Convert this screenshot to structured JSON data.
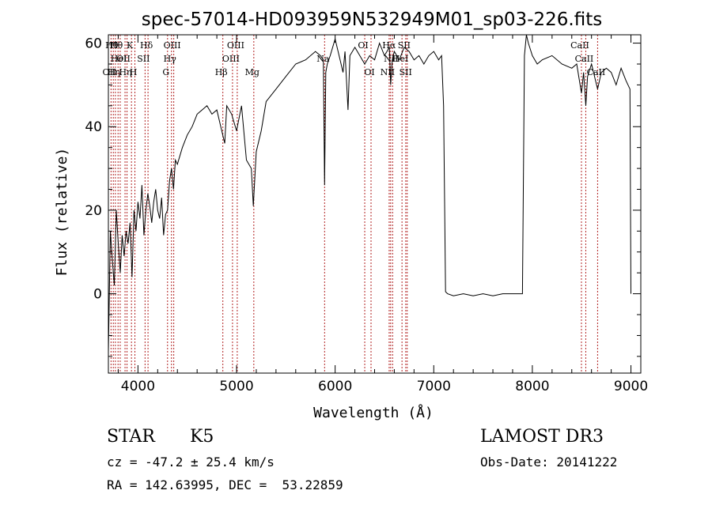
{
  "chart_data": {
    "type": "line",
    "title": "spec-57014-HD093959N532949M01_sp03-226.fits",
    "xlabel": "Wavelength (Å)",
    "ylabel": "Flux (relative)",
    "xlim": [
      3700,
      9100
    ],
    "ylim": [
      -19,
      62
    ],
    "x_ticks": [
      4000,
      5000,
      6000,
      7000,
      8000,
      9000
    ],
    "y_ticks": [
      0,
      20,
      40,
      60
    ],
    "grid": false,
    "line_color": "#000000",
    "marker_color": "#b22222",
    "series": [
      {
        "x": [
          3700,
          3720,
          3740,
          3760,
          3780,
          3800,
          3820,
          3840,
          3860,
          3880,
          3900,
          3920,
          3940,
          3960,
          3980,
          4000,
          4020,
          4040,
          4060,
          4080,
          4100,
          4120,
          4140,
          4160,
          4180,
          4200,
          4220,
          4240,
          4260,
          4280,
          4300,
          4320,
          4340,
          4360,
          4380,
          4400,
          4450,
          4500,
          4550,
          4600,
          4650,
          4700,
          4750,
          4800,
          4850,
          4880,
          4900,
          4950,
          5000,
          5050,
          5100,
          5150,
          5170,
          5200,
          5250,
          5300,
          5400,
          5500,
          5600,
          5700,
          5800,
          5850,
          5880,
          5893,
          5905,
          5920,
          5950,
          6000,
          6050,
          6080,
          6100,
          6130,
          6150,
          6200,
          6250,
          6300,
          6350,
          6400,
          6450,
          6500,
          6550,
          6563,
          6580,
          6600,
          6650,
          6700,
          6750,
          6800,
          6850,
          6900,
          6950,
          7000,
          7050,
          7080,
          7100,
          7120,
          7140,
          7200,
          7300,
          7400,
          7500,
          7600,
          7700,
          7800,
          7850,
          7900,
          7920,
          7940,
          7960,
          8000,
          8050,
          8100,
          8200,
          8300,
          8400,
          8450,
          8498,
          8520,
          8542,
          8560,
          8600,
          8662,
          8700,
          8750,
          8800,
          8850,
          8900,
          8950,
          8990,
          9000
        ],
        "y": [
          -14,
          15,
          8,
          2,
          20,
          12,
          5,
          14,
          9,
          15,
          12,
          17,
          4,
          20,
          15,
          22,
          18,
          26,
          14,
          20,
          24,
          21,
          17,
          22,
          25,
          20,
          18,
          23,
          14,
          19,
          20,
          27,
          30,
          25,
          32,
          31,
          35,
          38,
          40,
          43,
          44,
          45,
          43,
          44,
          39,
          36,
          45,
          43,
          39,
          45,
          32,
          30,
          21,
          34,
          39,
          46,
          49,
          52,
          55,
          56,
          58,
          57,
          56,
          26,
          53,
          55,
          57,
          61,
          56,
          53,
          58,
          44,
          57,
          59,
          57,
          55,
          57,
          56,
          60,
          57,
          59,
          50,
          56,
          58,
          56,
          59,
          58,
          56,
          57,
          55,
          57,
          58,
          56,
          57,
          45,
          0.5,
          0,
          -0.5,
          0,
          -0.5,
          0,
          -0.5,
          0,
          0,
          0,
          0,
          57,
          63,
          60,
          57,
          55,
          56,
          57,
          55,
          54,
          55,
          48,
          53,
          45,
          52,
          55,
          49,
          53,
          54,
          53,
          50,
          54,
          51,
          49,
          0
        ]
      }
    ],
    "line_markers": [
      {
        "wavelength": 3727,
        "label": "OII",
        "row": 3
      },
      {
        "wavelength": 3750,
        "label": "Hθ",
        "row": 1
      },
      {
        "wavelength": 3771,
        "label": "Hη",
        "row": 3
      },
      {
        "wavelength": 3798,
        "label": "Hθ",
        "row": 1
      },
      {
        "wavelength": 3820,
        "label": "HeI",
        "row": 2
      },
      {
        "wavelength": 3869,
        "label": "OII",
        "row": 2
      },
      {
        "wavelength": 3889,
        "label": "Hη",
        "row": 3
      },
      {
        "wavelength": 3934,
        "label": "K",
        "row": 1
      },
      {
        "wavelength": 3969,
        "label": "H",
        "row": 3
      },
      {
        "wavelength": 4072,
        "label": "SII",
        "row": 2
      },
      {
        "wavelength": 4102,
        "label": "Hδ",
        "row": 1
      },
      {
        "wavelength": 4300,
        "label": "G",
        "row": 3
      },
      {
        "wavelength": 4340,
        "label": "Hγ",
        "row": 2
      },
      {
        "wavelength": 4363,
        "label": "OIII",
        "row": 1
      },
      {
        "wavelength": 4861,
        "label": "Hβ",
        "row": 3
      },
      {
        "wavelength": 4959,
        "label": "OIII",
        "row": 2
      },
      {
        "wavelength": 5007,
        "label": "OIII",
        "row": 1
      },
      {
        "wavelength": 5175,
        "label": "Mg",
        "row": 3
      },
      {
        "wavelength": 5893,
        "label": "Na",
        "row": 2
      },
      {
        "wavelength": 6300,
        "label": "OI",
        "row": 1
      },
      {
        "wavelength": 6364,
        "label": "OI",
        "row": 3
      },
      {
        "wavelength": 6548,
        "label": "NII",
        "row": 3
      },
      {
        "wavelength": 6563,
        "label": "Hα",
        "row": 1
      },
      {
        "wavelength": 6583,
        "label": "NII",
        "row": 2
      },
      {
        "wavelength": 6678,
        "label": "HeI",
        "row": 2
      },
      {
        "wavelength": 6716,
        "label": "SII",
        "row": 1
      },
      {
        "wavelength": 6731,
        "label": "SII",
        "row": 3
      },
      {
        "wavelength": 8498,
        "label": "CaII",
        "row": 1
      },
      {
        "wavelength": 8542,
        "label": "CaII",
        "row": 2
      },
      {
        "wavelength": 8662,
        "label": "CaII",
        "row": 3
      }
    ]
  },
  "info": {
    "class": "STAR",
    "subclass": "K5",
    "survey": "LAMOST DR3",
    "cz": "cz = -47.2 ± 25.4 km/s",
    "obs_date": "Obs-Date: 20141222",
    "coords": "RA = 142.63995, DEC =  53.22859"
  }
}
